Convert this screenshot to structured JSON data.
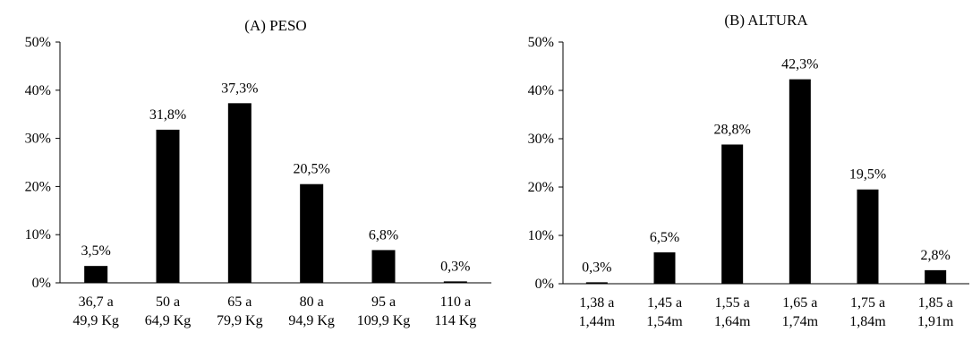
{
  "chart_data": [
    {
      "type": "bar",
      "title": "(A) PESO",
      "categories": [
        [
          "36,7 a",
          "49,9 Kg"
        ],
        [
          "50 a",
          "64,9 Kg"
        ],
        [
          "65 a",
          "79,9 Kg"
        ],
        [
          "80 a",
          "94,9 Kg"
        ],
        [
          "95 a",
          "109,9 Kg"
        ],
        [
          "110 a",
          "114 Kg"
        ]
      ],
      "values": [
        3.5,
        31.8,
        37.3,
        20.5,
        6.8,
        0.3
      ],
      "data_labels": [
        "3,5%",
        "31,8%",
        "37,3%",
        "20,5%",
        "6,8%",
        "0,3%"
      ],
      "ylim": [
        0,
        50
      ],
      "yticks": [
        "0%",
        "10%",
        "20%",
        "30%",
        "40%",
        "50%"
      ],
      "xlabel": "",
      "ylabel": "",
      "grid": false,
      "bar_color": "#000000"
    },
    {
      "type": "bar",
      "title": "(B) ALTURA",
      "categories": [
        [
          "1,38 a",
          "1,44m"
        ],
        [
          "1,45 a",
          "1,54m"
        ],
        [
          "1,55 a",
          "1,64m"
        ],
        [
          "1,65 a",
          "1,74m"
        ],
        [
          "1,75 a",
          "1,84m"
        ],
        [
          "1,85 a",
          "1,91m"
        ]
      ],
      "values": [
        0.3,
        6.5,
        28.8,
        42.3,
        19.5,
        2.8
      ],
      "data_labels": [
        "0,3%",
        "6,5%",
        "28,8%",
        "42,3%",
        "19,5%",
        "2,8%"
      ],
      "ylim": [
        0,
        50
      ],
      "yticks": [
        "0%",
        "10%",
        "20%",
        "30%",
        "40%",
        "50%"
      ],
      "xlabel": "",
      "ylabel": "",
      "grid": false,
      "bar_color": "#000000"
    }
  ]
}
